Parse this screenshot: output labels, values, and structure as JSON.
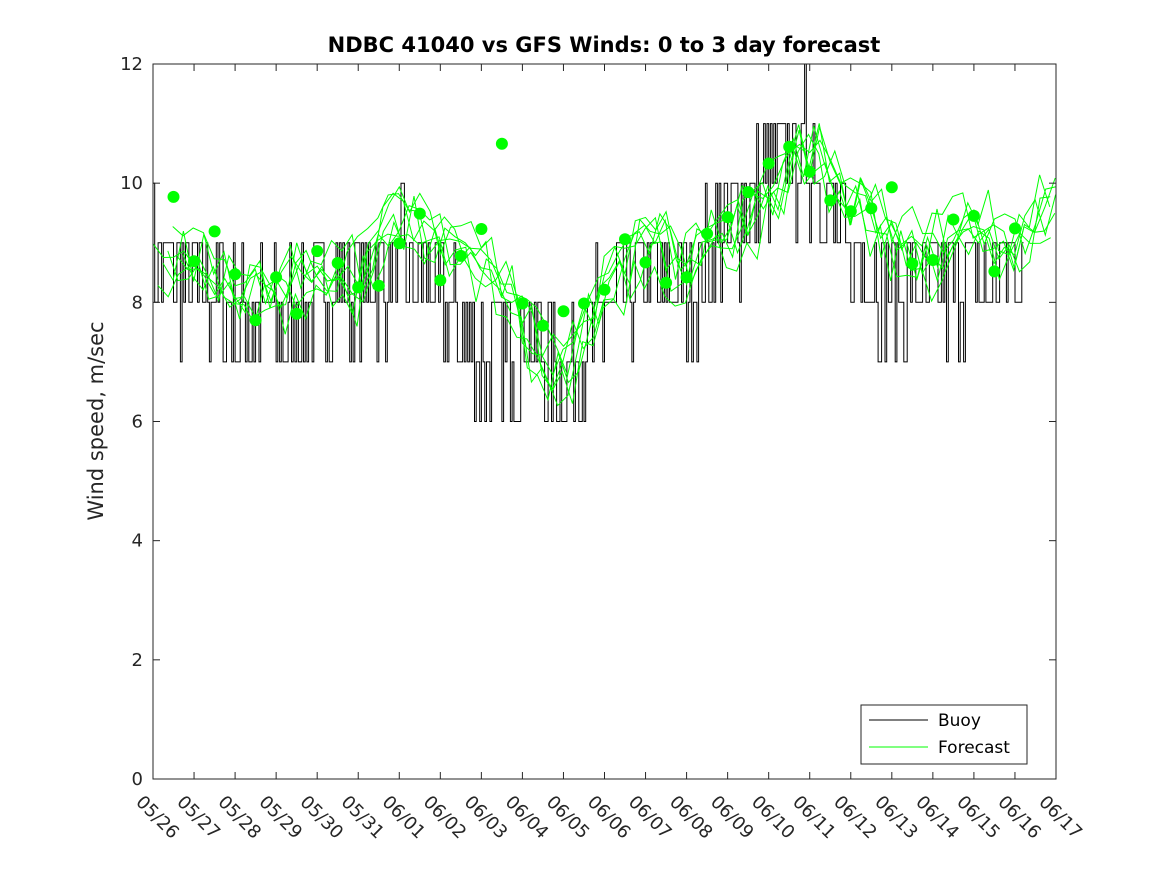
{
  "chart_data": {
    "type": "line",
    "title": "NDBC 41040 vs GFS Winds: 0 to 3 day forecast",
    "xlabel": "",
    "ylabel": "Wind speed, m/sec",
    "ylim": [
      0,
      12
    ],
    "yticks": [
      "0",
      "2",
      "4",
      "6",
      "8",
      "10",
      "12"
    ],
    "xlim": [
      "05/26",
      "06/17"
    ],
    "xticks": [
      "05/26",
      "05/27",
      "05/28",
      "05/29",
      "05/30",
      "05/31",
      "06/01",
      "06/02",
      "06/03",
      "06/04",
      "06/05",
      "06/06",
      "06/07",
      "06/08",
      "06/09",
      "06/10",
      "06/11",
      "06/12",
      "06/13",
      "06/14",
      "06/15",
      "06/16",
      "06/17"
    ],
    "grid": false,
    "legend": {
      "placement": "bottom-right",
      "entries": [
        "Buoy",
        "Forecast"
      ]
    },
    "colors": {
      "buoy": "#000000",
      "forecast": "#00ff00"
    },
    "series": [
      {
        "name": "Buoy",
        "style": "line",
        "x": [
          "05/26",
          "05/27",
          "05/28",
          "05/29",
          "05/30",
          "05/31",
          "06/01",
          "06/02",
          "06/03",
          "06/04",
          "06/05",
          "06/06",
          "06/07",
          "06/08",
          "06/09",
          "06/10",
          "06/11",
          "06/12",
          "06/13",
          "06/14",
          "06/15",
          "06/16"
        ],
        "values": [
          8.6,
          8.4,
          7.8,
          7.6,
          8.0,
          8.2,
          8.6,
          8.2,
          7.0,
          7.4,
          6.8,
          7.8,
          8.4,
          8.2,
          9.2,
          10.0,
          10.6,
          8.8,
          8.2,
          8.0,
          8.4,
          8.4
        ]
      },
      {
        "name": "Forecast",
        "style": "line",
        "x": [
          "05/26",
          "05/27",
          "05/28",
          "05/29",
          "05/30",
          "05/31",
          "06/01",
          "06/02",
          "06/03",
          "06/04",
          "06/05",
          "06/06",
          "06/07",
          "06/08",
          "06/09",
          "06/10",
          "06/11",
          "06/12",
          "06/13",
          "06/14",
          "06/15",
          "06/16",
          "06/17"
        ],
        "values": [
          8.6,
          8.8,
          8.0,
          8.2,
          8.6,
          8.4,
          9.4,
          9.0,
          8.6,
          7.6,
          6.6,
          8.2,
          9.0,
          8.6,
          9.2,
          9.6,
          10.6,
          9.6,
          9.0,
          8.8,
          9.4,
          8.8,
          9.8
        ]
      },
      {
        "name": "",
        "style": "markers",
        "x": [
          "05/26 12:00",
          "05/27 00:00",
          "05/27 12:00",
          "05/28 00:00",
          "05/28 12:00",
          "05/29 00:00",
          "05/29 12:00",
          "05/30 00:00",
          "05/30 12:00",
          "05/31 00:00",
          "05/31 12:00",
          "06/01 00:00",
          "06/01 12:00",
          "06/02 00:00",
          "06/02 12:00",
          "06/03 00:00",
          "06/03 12:00",
          "06/04 00:00",
          "06/04 12:00",
          "06/05 00:00",
          "06/05 12:00",
          "06/06 00:00",
          "06/06 12:00",
          "06/07 00:00",
          "06/07 12:00",
          "06/08 00:00",
          "06/08 12:00",
          "06/09 00:00",
          "06/09 12:00",
          "06/10 00:00",
          "06/10 12:00",
          "06/11 00:00",
          "06/11 12:00",
          "06/12 00:00",
          "06/12 12:00",
          "06/13 00:00",
          "06/13 12:00",
          "06/14 00:00",
          "06/14 12:00",
          "06/15 00:00",
          "06/15 12:00",
          "06/16 00:00"
        ],
        "values": [
          9.77,
          8.69,
          9.19,
          8.47,
          7.7,
          8.42,
          7.81,
          8.86,
          8.66,
          8.25,
          8.28,
          8.99,
          9.49,
          8.37,
          8.78,
          9.23,
          10.66,
          7.98,
          7.61,
          7.85,
          7.98,
          8.21,
          9.06,
          8.67,
          8.33,
          8.42,
          9.15,
          9.43,
          9.85,
          10.33,
          10.61,
          10.19,
          9.71,
          9.53,
          9.58,
          9.93,
          8.65,
          8.71,
          9.39,
          9.45,
          8.52,
          9.24
        ]
      }
    ]
  }
}
